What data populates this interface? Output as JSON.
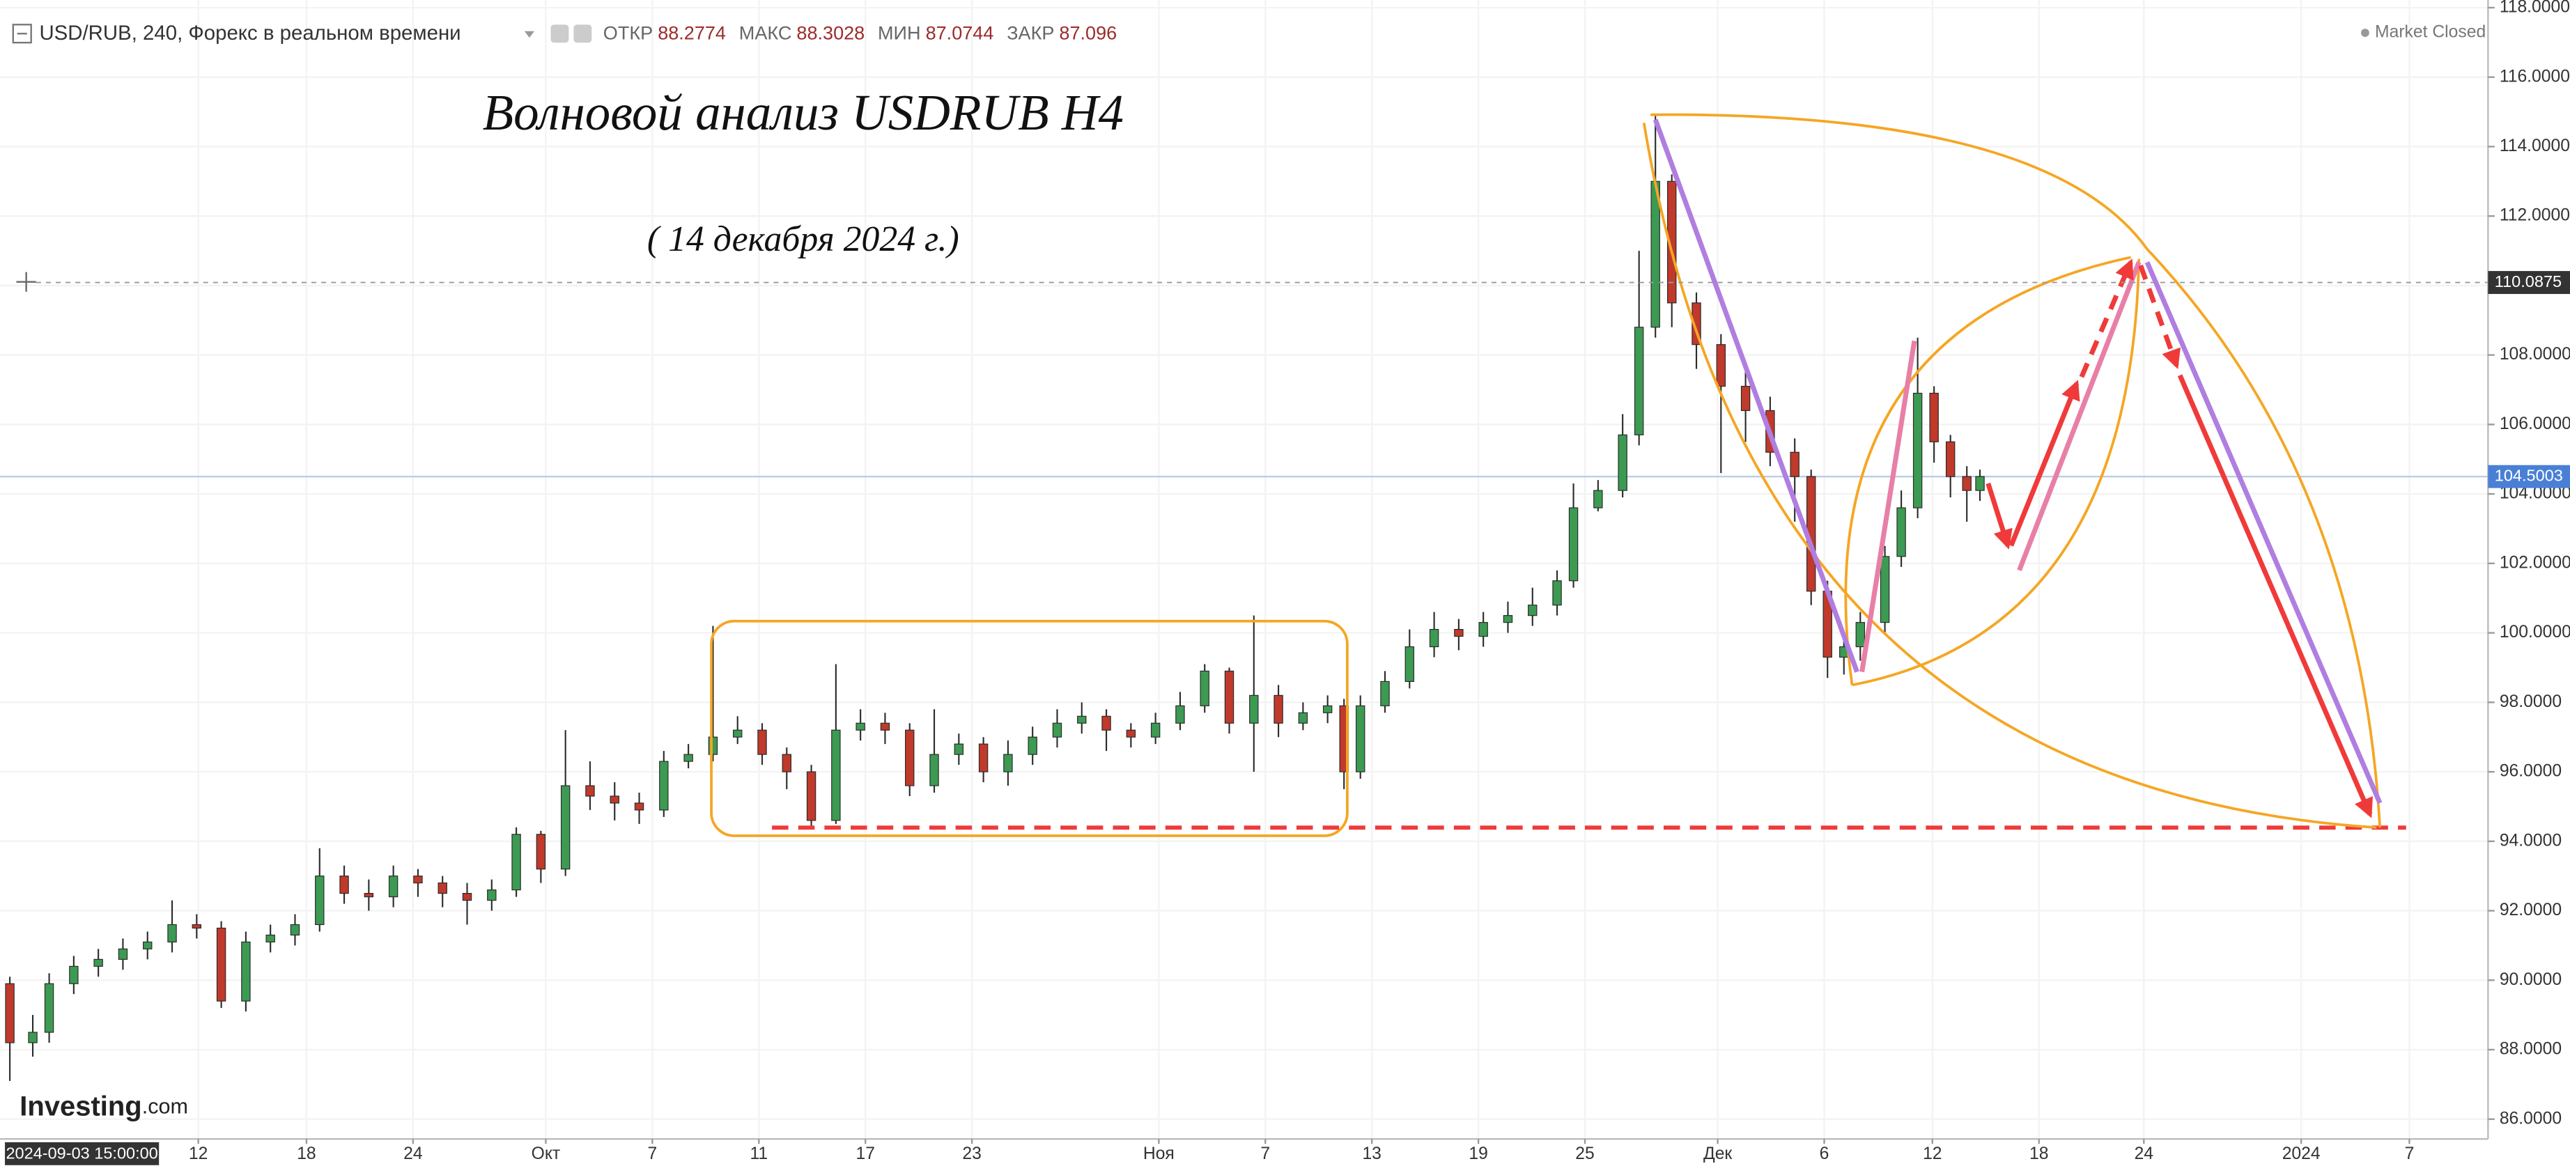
{
  "chart_data": {
    "type": "candlestick",
    "symbol": "USD/RUB, 240, Форекс в реальном времени",
    "ohlc_header": [
      {
        "key": "ОТКР",
        "value": 88.2774
      },
      {
        "key": "МАКС",
        "value": 88.3028
      },
      {
        "key": "МИН",
        "value": 87.0744
      },
      {
        "key": "ЗАКР",
        "value": 87.096
      }
    ],
    "market_status": "Market Closed",
    "title": "Волновой анализ USDRUB H4",
    "subtitle": "( 14 декабря 2024 г.)",
    "logo_brand": "Investing",
    "logo_domain": ".com",
    "cursor_time": "2024-09-03 15:00:00",
    "cursor_price": 110.0875,
    "last_price": 104.5003,
    "up_color": "#3c9a52",
    "down_color": "#c0392b",
    "grid": true,
    "xlim": [
      0,
      151.8
    ],
    "xticks": [
      {
        "value": 12.1,
        "label": "12"
      },
      {
        "value": 18.7,
        "label": "18"
      },
      {
        "value": 25.2,
        "label": "24"
      },
      {
        "value": 33.3,
        "label": "Окт"
      },
      {
        "value": 39.8,
        "label": "7"
      },
      {
        "value": 46.3,
        "label": "11"
      },
      {
        "value": 52.8,
        "label": "17"
      },
      {
        "value": 59.3,
        "label": "23"
      },
      {
        "value": 70.7,
        "label": "Ноя"
      },
      {
        "value": 77.2,
        "label": "7"
      },
      {
        "value": 83.7,
        "label": "13"
      },
      {
        "value": 90.2,
        "label": "19"
      },
      {
        "value": 96.7,
        "label": "25"
      },
      {
        "value": 104.8,
        "label": "Дек"
      },
      {
        "value": 111.3,
        "label": "6"
      },
      {
        "value": 117.9,
        "label": "12"
      },
      {
        "value": 124.4,
        "label": "18"
      },
      {
        "value": 130.8,
        "label": "24"
      },
      {
        "value": 140.4,
        "label": "2024"
      },
      {
        "value": 147.0,
        "label": "7"
      }
    ],
    "ylim": [
      85.43,
      118.22
    ],
    "yticks": [
      {
        "value": 86,
        "label": "86.0000"
      },
      {
        "value": 88,
        "label": "88.0000"
      },
      {
        "value": 90,
        "label": "90.0000"
      },
      {
        "value": 92,
        "label": "92.0000"
      },
      {
        "value": 94,
        "label": "94.0000"
      },
      {
        "value": 96,
        "label": "96.0000"
      },
      {
        "value": 98,
        "label": "98.0000"
      },
      {
        "value": 100,
        "label": "100.0000"
      },
      {
        "value": 102,
        "label": "102.0000"
      },
      {
        "value": 104,
        "label": "104.0000"
      },
      {
        "value": 106,
        "label": "106.0000"
      },
      {
        "value": 108,
        "label": "108.0000"
      },
      {
        "value": 110,
        "label": "110.0000"
      },
      {
        "value": 112,
        "label": "112.0000"
      },
      {
        "value": 114,
        "label": "114.0000"
      },
      {
        "value": 116,
        "label": "116.0000"
      },
      {
        "value": 118,
        "label": "118.0000"
      }
    ],
    "x": [
      0.6,
      2.0,
      3.0,
      4.5,
      6.0,
      7.5,
      9.0,
      10.5,
      12.0,
      13.5,
      15.0,
      16.5,
      18.0,
      19.5,
      21.0,
      22.5,
      24.0,
      25.5,
      27.0,
      28.5,
      30.0,
      31.5,
      33.0,
      34.5,
      36.0,
      37.5,
      39.0,
      40.5,
      42.0,
      43.5,
      45.0,
      46.5,
      48.0,
      49.5,
      51.0,
      52.5,
      54.0,
      55.5,
      57.0,
      58.5,
      60.0,
      61.5,
      63.0,
      64.5,
      66.0,
      67.5,
      69.0,
      70.5,
      72.0,
      73.5,
      75.0,
      76.5,
      78.0,
      79.5,
      81.0,
      82.0,
      83.0,
      84.5,
      86.0,
      87.5,
      89.0,
      90.5,
      92.0,
      93.5,
      95.0,
      96.0,
      97.5,
      99.0,
      100.0,
      101.0,
      102.0,
      103.5,
      105.0,
      106.5,
      108.0,
      109.5,
      110.5,
      111.5,
      112.5,
      113.5,
      115.0,
      116.0,
      117.0,
      118.0,
      119.0,
      120.0,
      120.8
    ],
    "open": [
      89.9,
      88.2,
      88.5,
      89.9,
      90.4,
      90.6,
      90.9,
      91.1,
      91.6,
      91.5,
      89.4,
      91.1,
      91.3,
      91.6,
      93.0,
      92.5,
      92.4,
      93.0,
      92.8,
      92.5,
      92.3,
      92.6,
      94.2,
      93.2,
      95.6,
      95.3,
      95.1,
      94.9,
      96.3,
      96.5,
      97.0,
      97.2,
      96.5,
      96.0,
      94.6,
      97.2,
      97.4,
      97.2,
      95.6,
      96.5,
      96.8,
      96.0,
      96.5,
      97.0,
      97.4,
      97.6,
      97.2,
      97.0,
      97.4,
      97.9,
      98.9,
      97.4,
      98.2,
      97.4,
      97.7,
      97.9,
      96.0,
      97.9,
      98.6,
      99.6,
      100.1,
      99.9,
      100.3,
      100.5,
      100.8,
      101.5,
      103.6,
      104.1,
      105.7,
      108.8,
      113.0,
      109.5,
      108.3,
      107.1,
      106.4,
      105.2,
      104.5,
      101.2,
      99.3,
      99.6,
      100.3,
      102.2,
      103.6,
      106.9,
      105.5,
      104.5,
      104.1
    ],
    "high": [
      90.1,
      89.0,
      90.2,
      90.7,
      90.9,
      91.2,
      91.4,
      92.3,
      91.9,
      91.7,
      91.4,
      91.6,
      91.9,
      93.8,
      93.3,
      92.9,
      93.3,
      93.2,
      93.0,
      92.8,
      92.9,
      94.4,
      94.3,
      97.2,
      96.3,
      95.7,
      95.4,
      96.6,
      96.8,
      100.2,
      97.6,
      97.4,
      96.7,
      96.2,
      99.1,
      97.8,
      97.7,
      97.4,
      97.8,
      97.1,
      97.0,
      96.9,
      97.3,
      97.8,
      98.0,
      97.8,
      97.4,
      97.7,
      98.3,
      99.1,
      99.0,
      100.5,
      98.5,
      98.0,
      98.2,
      98.1,
      98.2,
      98.9,
      100.1,
      100.6,
      100.4,
      100.6,
      100.9,
      101.3,
      101.8,
      104.3,
      104.4,
      106.3,
      111.0,
      114.9,
      113.2,
      109.8,
      108.6,
      107.6,
      106.8,
      105.6,
      104.7,
      101.5,
      100.0,
      100.6,
      102.5,
      104.1,
      108.5,
      107.1,
      105.7,
      104.8,
      104.7
    ],
    "low": [
      87.1,
      87.8,
      88.2,
      89.6,
      90.1,
      90.3,
      90.6,
      90.8,
      91.2,
      89.2,
      89.1,
      90.8,
      91.0,
      91.4,
      92.2,
      92.0,
      92.1,
      92.4,
      92.1,
      91.6,
      92.0,
      92.4,
      92.8,
      93.0,
      94.9,
      94.6,
      94.5,
      94.7,
      96.1,
      96.3,
      96.8,
      96.2,
      95.5,
      94.4,
      94.5,
      96.9,
      96.8,
      95.3,
      95.4,
      96.2,
      95.7,
      95.6,
      96.2,
      96.7,
      97.1,
      96.6,
      96.7,
      96.8,
      97.2,
      97.7,
      97.1,
      96.0,
      97.0,
      97.2,
      97.4,
      95.5,
      95.8,
      97.7,
      98.4,
      99.3,
      99.5,
      99.6,
      100.0,
      100.2,
      100.5,
      101.3,
      103.5,
      103.9,
      105.4,
      108.5,
      108.8,
      107.6,
      104.6,
      105.5,
      104.8,
      103.2,
      100.8,
      98.7,
      98.8,
      99.2,
      100.0,
      101.9,
      103.3,
      104.9,
      103.9,
      103.2,
      103.8
    ],
    "close": [
      88.2,
      88.5,
      89.9,
      90.4,
      90.6,
      90.9,
      91.1,
      91.6,
      91.5,
      89.4,
      91.1,
      91.3,
      91.6,
      93.0,
      92.5,
      92.4,
      93.0,
      92.8,
      92.5,
      92.3,
      92.6,
      94.2,
      93.2,
      95.6,
      95.3,
      95.1,
      94.9,
      96.3,
      96.5,
      97.0,
      97.2,
      96.5,
      96.0,
      94.6,
      97.2,
      97.4,
      97.2,
      95.6,
      96.5,
      96.8,
      96.0,
      96.5,
      97.0,
      97.4,
      97.6,
      97.2,
      97.0,
      97.4,
      97.9,
      98.9,
      97.4,
      98.2,
      97.4,
      97.7,
      97.9,
      96.0,
      97.9,
      98.6,
      99.6,
      100.1,
      99.9,
      100.3,
      100.5,
      100.8,
      101.5,
      103.6,
      104.1,
      105.7,
      108.8,
      113.0,
      109.5,
      108.3,
      107.1,
      106.4,
      105.2,
      104.5,
      101.2,
      99.3,
      99.6,
      100.3,
      102.2,
      103.6,
      106.9,
      105.5,
      104.5,
      104.1,
      104.5
    ]
  }
}
